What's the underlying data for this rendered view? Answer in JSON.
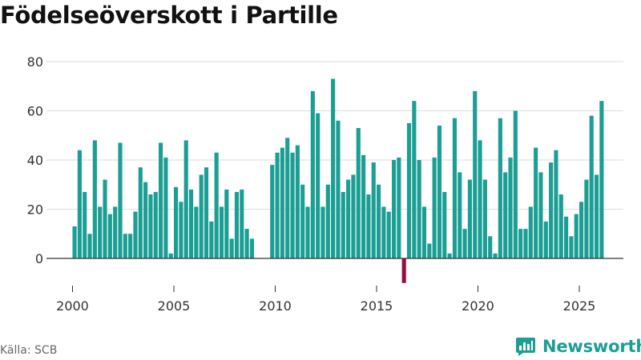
{
  "title": "Födelseöverskott i Partille",
  "source": "Källa: SCB",
  "brand": "Newsworthy",
  "colors": {
    "positive": "#1b9e94",
    "negative": "#9b0d3f",
    "grid": "#dddddd",
    "zero_line": "#333333",
    "brand": "#1b9e94"
  },
  "chart_data": {
    "type": "bar",
    "title": "Födelseöverskott i Partille",
    "xlabel": "",
    "ylabel": "",
    "ylim": [
      -10,
      80
    ],
    "yticks": [
      0,
      20,
      40,
      60,
      80
    ],
    "xticks": [
      2000,
      2005,
      2010,
      2015,
      2020,
      2025
    ],
    "start": "2000-01",
    "frequency": "monthly",
    "grid": true,
    "values": [
      13,
      44,
      27,
      10,
      48,
      21,
      32,
      18,
      21,
      47,
      10,
      10,
      19,
      37,
      31,
      26,
      27,
      47,
      41,
      2,
      29,
      23,
      48,
      28,
      21,
      34,
      37,
      15,
      43,
      21,
      28,
      8,
      27,
      28,
      12,
      8,
      null,
      null,
      null,
      38,
      43,
      45,
      49,
      43,
      46,
      30,
      21,
      68,
      59,
      21,
      30,
      73,
      56,
      27,
      32,
      34,
      53,
      42,
      26,
      39,
      30,
      21,
      19,
      40,
      41,
      -10,
      55,
      64,
      40,
      21,
      6,
      41,
      54,
      27,
      2,
      57,
      35,
      12,
      32,
      68,
      48,
      32,
      9,
      2,
      57,
      35,
      41,
      60,
      12,
      12,
      21,
      45,
      35,
      15,
      39,
      44,
      26,
      17,
      9,
      18,
      23,
      32,
      58,
      34,
      64
    ]
  }
}
